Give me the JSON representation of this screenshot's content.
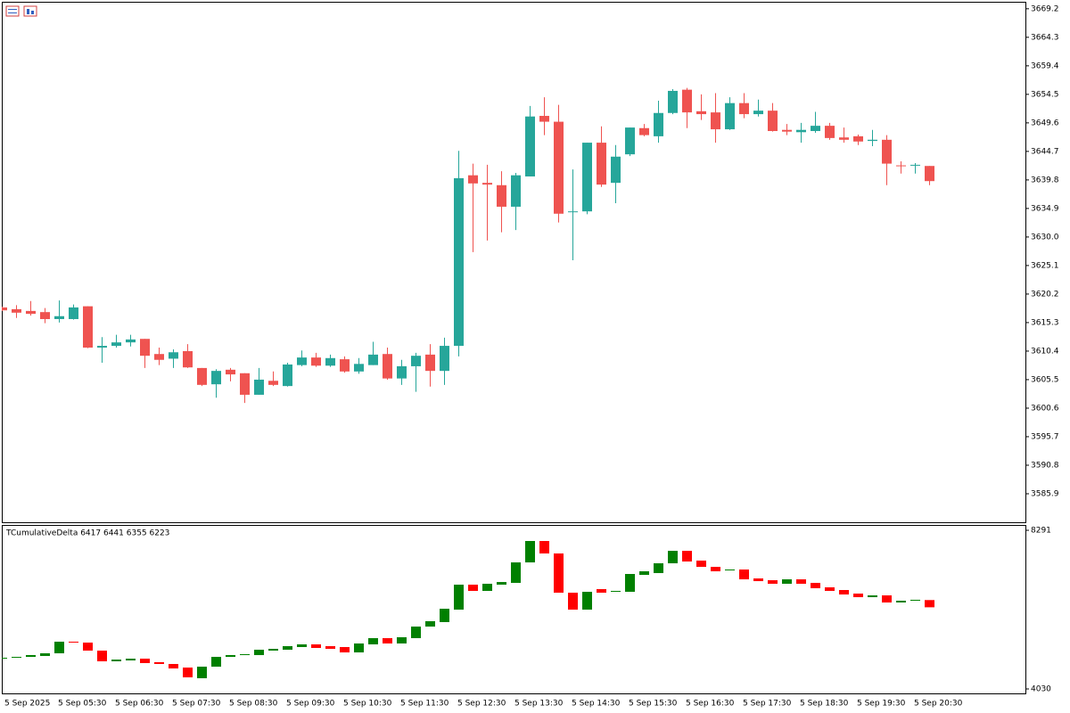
{
  "chart_data": [
    {
      "type": "candlestick",
      "up_color": "#26a69a",
      "down_color": "#ef5350",
      "categories": [
        "5 Sep 2025",
        null,
        null,
        null,
        "5 Sep 05:30",
        null,
        null,
        null,
        "5 Sep 06:30",
        null,
        null,
        null,
        "5 Sep 07:30",
        null,
        null,
        null,
        "5 Sep 08:30",
        null,
        null,
        null,
        "5 Sep 09:30",
        null,
        null,
        null,
        "5 Sep 10:30",
        null,
        null,
        null,
        "5 Sep 11:30",
        null,
        null,
        null,
        "5 Sep 12:30",
        null,
        null,
        null,
        "5 Sep 13:30",
        null,
        null,
        null,
        "5 Sep 14:30",
        null,
        null,
        null,
        "5 Sep 15:30",
        null,
        null,
        null,
        "5 Sep 16:30",
        null,
        null,
        null,
        "5 Sep 17:30",
        null,
        null,
        null,
        "5 Sep 18:30",
        null,
        null,
        null,
        "5 Sep 19:30",
        null,
        null,
        null,
        "5 Sep 20:30",
        null
      ],
      "open": [
        3617.9,
        3617.6,
        3617.3,
        3617.1,
        3615.9,
        3615.9,
        3618.1,
        3611.0,
        3611.3,
        3611.9,
        3612.5,
        3609.9,
        3609.1,
        3610.4,
        3607.5,
        3604.7,
        3607.2,
        3606.6,
        3602.9,
        3605.3,
        3604.4,
        3608.0,
        3609.3,
        3607.9,
        3609.0,
        3606.9,
        3608.0,
        3609.9,
        3605.7,
        3607.8,
        3609.8,
        3607.0,
        3611.3,
        3640.6,
        3639.3,
        3638.9,
        3635.2,
        3640.4,
        3650.8,
        3649.8,
        3634.3,
        3634.4,
        3646.2,
        3639.3,
        3644.2,
        3648.7,
        3647.3,
        3651.3,
        3655.3,
        3651.6,
        3651.4,
        3648.5,
        3653.0,
        3651.1,
        3651.7,
        3648.4,
        3648.0,
        3648.2,
        3649.1,
        3647.1,
        3647.3,
        3646.5,
        3646.7,
        3642.3,
        3642.3,
        3642.2
      ],
      "high": [
        3618.0,
        3618.3,
        3619.0,
        3617.8,
        3619.1,
        3618.4,
        3618.1,
        3612.8,
        3613.2,
        3613.2,
        3612.5,
        3611.0,
        3610.7,
        3611.6,
        3607.5,
        3607.3,
        3607.5,
        3606.6,
        3607.5,
        3606.9,
        3608.4,
        3610.5,
        3610.1,
        3609.8,
        3609.5,
        3609.2,
        3612.0,
        3611.0,
        3608.9,
        3610.1,
        3611.6,
        3612.7,
        3644.8,
        3642.6,
        3642.4,
        3641.3,
        3641.0,
        3652.5,
        3654.0,
        3652.7,
        3641.6,
        3646.2,
        3649.0,
        3645.8,
        3648.8,
        3649.4,
        3653.4,
        3655.4,
        3655.6,
        3654.5,
        3654.7,
        3654.0,
        3654.7,
        3653.6,
        3653.0,
        3649.4,
        3649.6,
        3651.5,
        3649.6,
        3648.8,
        3647.6,
        3648.4,
        3647.5,
        3643.0,
        3642.7,
        3642.2
      ],
      "low": [
        3617.3,
        3616.1,
        3616.5,
        3615.2,
        3615.3,
        3615.8,
        3610.9,
        3608.4,
        3611.0,
        3611.2,
        3607.5,
        3608.0,
        3607.5,
        3607.5,
        3604.4,
        3602.4,
        3605.2,
        3601.5,
        3602.9,
        3604.4,
        3604.3,
        3607.8,
        3607.7,
        3607.7,
        3606.7,
        3606.5,
        3608.0,
        3605.5,
        3604.6,
        3603.4,
        3604.3,
        3604.6,
        3609.5,
        3627.4,
        3629.4,
        3630.8,
        3631.2,
        3640.4,
        3647.5,
        3632.5,
        3626.0,
        3633.9,
        3638.6,
        3635.8,
        3643.9,
        3647.3,
        3646.2,
        3651.1,
        3648.7,
        3650.1,
        3646.2,
        3648.4,
        3650.4,
        3650.7,
        3648.1,
        3647.5,
        3646.2,
        3647.9,
        3646.7,
        3646.2,
        3645.8,
        3645.6,
        3638.9,
        3640.9,
        3640.9,
        3638.9
      ],
      "close": [
        3617.4,
        3617.0,
        3616.8,
        3615.9,
        3616.4,
        3617.9,
        3611.0,
        3611.3,
        3611.9,
        3612.4,
        3609.6,
        3608.9,
        3610.2,
        3607.6,
        3604.6,
        3607.0,
        3606.4,
        3602.9,
        3605.5,
        3604.6,
        3608.1,
        3609.3,
        3607.9,
        3609.2,
        3606.9,
        3608.2,
        3609.8,
        3605.7,
        3607.8,
        3609.6,
        3607.0,
        3611.3,
        3640.1,
        3639.2,
        3639.0,
        3635.2,
        3640.6,
        3650.7,
        3649.8,
        3634.0,
        3634.4,
        3646.2,
        3639.0,
        3643.8,
        3648.8,
        3647.5,
        3651.3,
        3655.1,
        3651.4,
        3651.1,
        3648.5,
        3653.0,
        3651.1,
        3651.7,
        3648.2,
        3648.1,
        3648.4,
        3649.1,
        3647.0,
        3646.7,
        3646.4,
        3646.7,
        3642.6,
        3642.2,
        3642.4,
        3639.6
      ],
      "ylim": [
        3581.0,
        3670.4
      ],
      "yticks": [
        3669.2,
        3664.3,
        3659.4,
        3654.5,
        3649.6,
        3644.7,
        3639.8,
        3634.9,
        {
          "value": 3630,
          "label": "3630.0"
        },
        3625.1,
        3620.2,
        3615.3,
        3610.4,
        3605.5,
        3600.6,
        3595.7,
        3590.8,
        3585.9
      ]
    },
    {
      "type": "candlestick",
      "title": "TCumulativeDelta 6417 6441 6355 6223",
      "up_color": "#008000",
      "down_color": "#ff0000",
      "open": [
        4843,
        4867,
        4891,
        4915,
        4987,
        5299,
        5275,
        5059,
        4772,
        4795,
        4843,
        4748,
        4700,
        4604,
        4317,
        4628,
        4891,
        4939,
        4939,
        5059,
        5083,
        5155,
        5227,
        5179,
        5155,
        5011,
        5227,
        5394,
        5251,
        5394,
        5705,
        5825,
        6160,
        6831,
        6663,
        6831,
        6879,
        7429,
        8004,
        7669,
        6615,
        6160,
        6711,
        6639,
        6639,
        7094,
        7142,
        7405,
        7740,
        7477,
        7309,
        7214,
        7238,
        6998,
        6950,
        6855,
        6974,
        6879,
        6759,
        6687,
        6591,
        6495,
        6543,
        6352,
        6400,
        6417
      ],
      "close": [
        4867,
        4891,
        4939,
        4987,
        5299,
        5275,
        5059,
        4772,
        4819,
        4843,
        4724,
        4700,
        4580,
        4341,
        4628,
        4891,
        4939,
        4963,
        5083,
        5107,
        5179,
        5227,
        5131,
        5107,
        5011,
        5251,
        5394,
        5251,
        5418,
        5705,
        5849,
        6184,
        6831,
        6663,
        6855,
        6902,
        7429,
        8004,
        7669,
        6615,
        6160,
        6639,
        6615,
        6663,
        7118,
        7190,
        7405,
        7740,
        7453,
        7309,
        7190,
        7238,
        6974,
        6926,
        6855,
        6974,
        6855,
        6735,
        6663,
        6567,
        6495,
        6543,
        6352,
        6400,
        6424,
        6223
      ],
      "ylim": [
        3910,
        8411
      ],
      "yticks": [
        8291,
        4030
      ]
    }
  ]
}
